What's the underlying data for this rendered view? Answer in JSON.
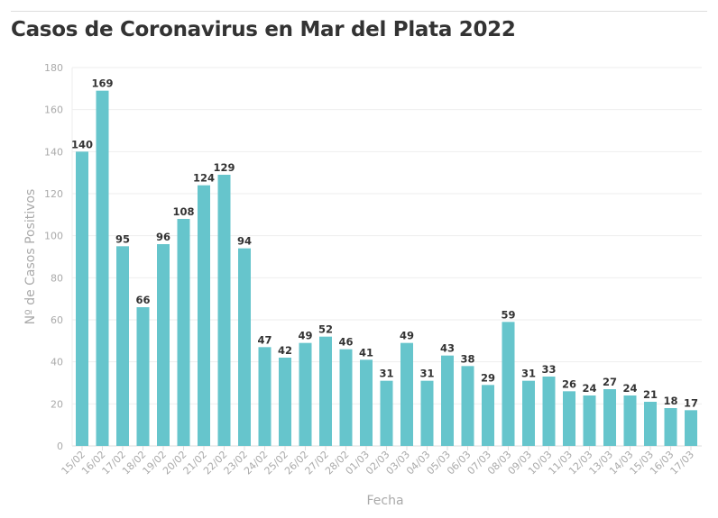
{
  "chart_data": {
    "type": "bar",
    "title": "Casos de Coronavirus en Mar del Plata 2022",
    "xlabel": "Fecha",
    "ylabel": "Nº de Casos Positivos",
    "ylim": [
      0,
      180
    ],
    "yticks": [
      0,
      20,
      40,
      60,
      80,
      100,
      120,
      140,
      160,
      180
    ],
    "grid": true,
    "bar_color": "#66c5cc",
    "categories": [
      "15/02",
      "16/02",
      "17/02",
      "18/02",
      "19/02",
      "20/02",
      "21/02",
      "22/02",
      "23/02",
      "24/02",
      "25/02",
      "26/02",
      "27/02",
      "28/02",
      "01/03",
      "02/03",
      "03/03",
      "04/03",
      "05/03",
      "06/03",
      "07/03",
      "08/03",
      "09/03",
      "10/03",
      "11/03",
      "12/03",
      "13/03",
      "14/03",
      "15/03",
      "16/03",
      "17/03"
    ],
    "values": [
      140,
      169,
      95,
      66,
      96,
      108,
      124,
      129,
      94,
      47,
      42,
      49,
      52,
      46,
      41,
      31,
      49,
      31,
      43,
      38,
      29,
      59,
      31,
      33,
      26,
      24,
      27,
      24,
      21,
      18,
      17
    ]
  }
}
